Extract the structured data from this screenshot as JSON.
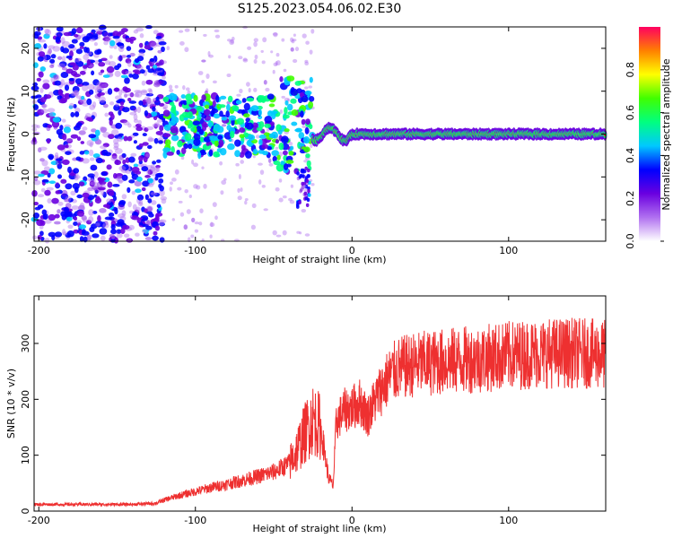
{
  "title": "S125.2023.054.06.02.E30",
  "chart_data": [
    {
      "type": "heatmap",
      "xlabel": "Height of straight line (km)",
      "ylabel": "Frequency (Hz)",
      "xlim": [
        -203,
        162
      ],
      "ylim": [
        -25,
        25
      ],
      "xticks": [
        -200,
        -100,
        0,
        100
      ],
      "yticks": [
        -20,
        -10,
        0,
        10,
        20
      ],
      "colorbar": {
        "label": "Normalized spectral amplitude",
        "range": [
          0,
          1
        ],
        "ticks": [
          "0.0",
          "0.2",
          "0.4",
          "0.6",
          "0.8"
        ],
        "colormap": [
          "#ffffff",
          "#b070f0",
          "#6a00e0",
          "#0000ff",
          "#00c8ff",
          "#00ff80",
          "#40ff00",
          "#ffff00",
          "#ff8000",
          "#ff0060"
        ]
      },
      "regions": [
        {
          "x": [
            -203,
            -120
          ],
          "description_level": 0.35
        },
        {
          "x": [
            -120,
            -25
          ],
          "description_level": 0.55
        },
        {
          "x": [
            -25,
            162
          ],
          "peak_frequency_hz": 0,
          "description_level": 1.0
        }
      ]
    },
    {
      "type": "line",
      "xlabel": "Height of straight line (km)",
      "ylabel": "SNR (10 * v/v)",
      "xlim": [
        -203,
        162
      ],
      "ylim": [
        0,
        385
      ],
      "xticks": [
        -200,
        -100,
        0,
        100
      ],
      "yticks": [
        0,
        100,
        200,
        300
      ],
      "color": "#ee3030",
      "series": [
        {
          "x": [
            -203,
            -180,
            -160,
            -140,
            -125,
            -120,
            -110,
            -100,
            -90,
            -80,
            -70,
            -60,
            -50,
            -40,
            -35,
            -30,
            -25,
            -20,
            -15,
            -12,
            -10,
            -5,
            0,
            5,
            10,
            15,
            20,
            25,
            30,
            40,
            50,
            60,
            70,
            80,
            90,
            100,
            110,
            120,
            130,
            140,
            150,
            162
          ],
          "values": [
            12,
            12,
            12,
            12,
            14,
            20,
            28,
            35,
            42,
            48,
            55,
            62,
            70,
            85,
            110,
            140,
            165,
            150,
            60,
            45,
            160,
            180,
            185,
            195,
            170,
            200,
            225,
            245,
            255,
            262,
            265,
            268,
            270,
            272,
            275,
            278,
            280,
            282,
            283,
            283,
            282,
            280
          ]
        }
      ]
    }
  ]
}
